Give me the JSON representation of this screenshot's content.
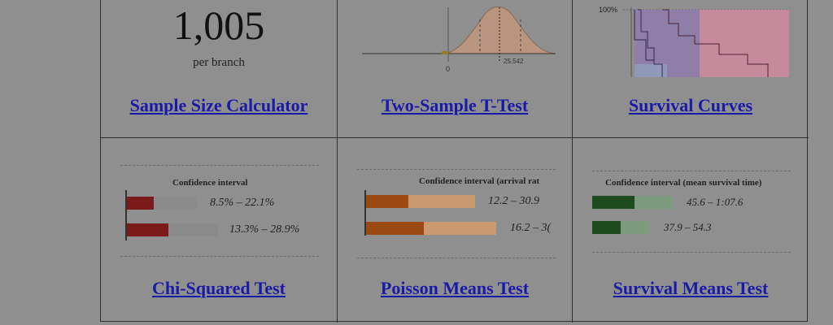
{
  "tiles": [
    {
      "name": "sample-size-calculator",
      "link": "Sample Size Calculator",
      "preview": {
        "number": "1,005",
        "caption": "per branch"
      }
    },
    {
      "name": "two-sample-t-test",
      "link": "Two-Sample T-Test",
      "preview": {
        "axis_zero": "0",
        "marker": "25.542"
      }
    },
    {
      "name": "survival-curves",
      "link": "Survival Curves",
      "preview": {
        "y_label": "100%"
      }
    },
    {
      "name": "chi-squared-test",
      "link": "Chi-Squared Test",
      "preview": {
        "title": "Confidence interval",
        "rows": [
          "8.5% – 22.1%",
          "13.3% – 28.9%"
        ],
        "dark_color": "#7a1a1a",
        "light_color": "#8a8a8a"
      }
    },
    {
      "name": "poisson-means-test",
      "link": "Poisson Means Test",
      "preview": {
        "title": "Confidence interval (arrival rat",
        "rows": [
          "12.2 – 30.9",
          "16.2 – 3("
        ],
        "dark_color": "#9a4a12",
        "light_color": "#c89a6e"
      }
    },
    {
      "name": "survival-means-test",
      "link": "Survival Means Test",
      "preview": {
        "title": "Confidence interval (mean survival time)",
        "rows": [
          "45.6 – 1:07.6",
          "37.9 – 54.3"
        ],
        "dark_color": "#1e4a1e",
        "light_color": "#7c9a7c"
      }
    }
  ],
  "colors": {
    "page_background": "#8f8f8f",
    "link": "#1a1aa8"
  }
}
